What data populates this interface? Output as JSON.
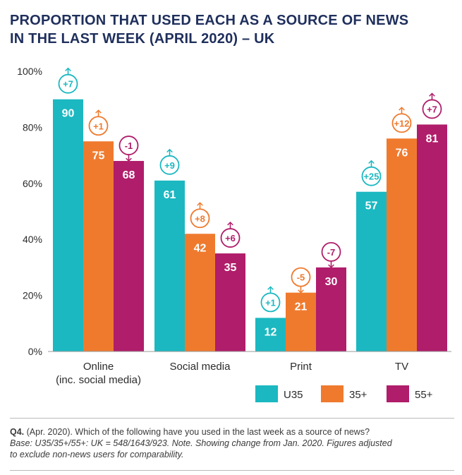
{
  "chart_data": {
    "type": "bar",
    "title": [
      "PROPORTION THAT USED EACH AS A SOURCE OF NEWS",
      "IN THE LAST WEEK (APRIL 2020) – UK"
    ],
    "categories": [
      [
        "Online",
        "(inc. social media)"
      ],
      [
        "Social media"
      ],
      [
        "Print"
      ],
      [
        "TV"
      ]
    ],
    "series": [
      {
        "name": "U35",
        "color": "#1bb8c1",
        "values": [
          90,
          61,
          12,
          57
        ],
        "changes": [
          "+7",
          "+9",
          "+1",
          "+25"
        ]
      },
      {
        "name": "35+",
        "color": "#ef7a2e",
        "values": [
          75,
          42,
          21,
          76
        ],
        "changes": [
          "+1",
          "+8",
          "-5",
          "+12"
        ]
      },
      {
        "name": "55+",
        "color": "#b01d6a",
        "values": [
          68,
          35,
          30,
          81
        ],
        "changes": [
          "-1",
          "+6",
          "-7",
          "+7"
        ]
      }
    ],
    "y_ticks": [
      "0%",
      "20%",
      "40%",
      "60%",
      "80%",
      "100%"
    ],
    "ylim": [
      0,
      100
    ],
    "legend_position": "bottom-right"
  },
  "footer": {
    "question_label": "Q4.",
    "question_text": "(Apr. 2020). Which of the following have you used in the last week as a source of news?",
    "base_line1": "Base: U35/35+/55+: UK = 548/1643/923. Note. Showing change from Jan. 2020. Figures adjusted",
    "base_line2": "to exclude non-news users for comparability."
  }
}
